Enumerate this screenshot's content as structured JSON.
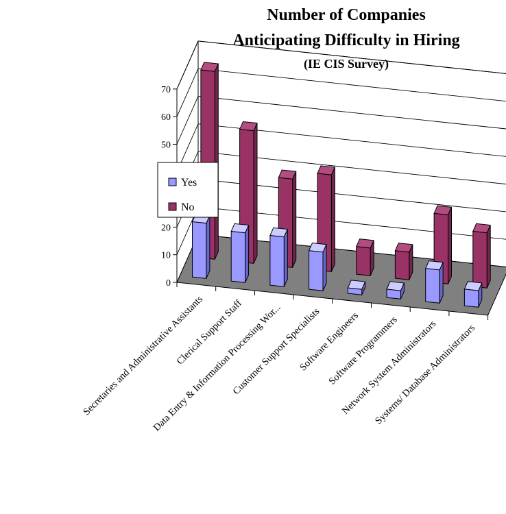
{
  "chart_data": {
    "type": "bar",
    "title": "Number of Companies",
    "title_line2": "Anticipating Difficulty in Hiring",
    "subtitle": "(IE CIS Survey)",
    "xlabel": "",
    "ylabel": "",
    "ylim": [
      0,
      70
    ],
    "yticks": [
      0,
      10,
      20,
      30,
      40,
      50,
      60,
      70
    ],
    "grid": true,
    "legend_position": "left",
    "categories": [
      "Secretaries and Administrative Assistants",
      "Clerical Support Staff",
      "Data Entry & Information Processing Wor...",
      "Customer Support Specialists",
      "Software Engineers",
      "Software Programmers",
      "Network System Administrators",
      "Systems/ Database Administrators"
    ],
    "series": [
      {
        "name": "Yes",
        "values": [
          20,
          18,
          18,
          14,
          2,
          3,
          12,
          6
        ]
      },
      {
        "name": "No",
        "values": [
          68,
          48,
          32,
          35,
          10,
          10,
          25,
          20
        ]
      }
    ]
  },
  "colors": {
    "yes_front": "#9999ff",
    "yes_side": "#6666cc",
    "yes_top": "#ccccff",
    "no_front": "#993366",
    "no_side": "#73264d",
    "no_top": "#b34d80",
    "floor": "#808080"
  }
}
